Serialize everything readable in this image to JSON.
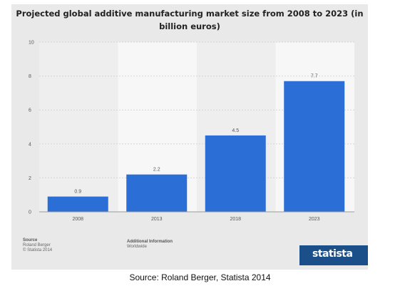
{
  "chart_data": {
    "type": "bar",
    "title": "Projected global additive manufacturing market size from 2008 to 2023 (in billion euros)",
    "categories": [
      "2008",
      "2013",
      "2018",
      "2023"
    ],
    "values": [
      0.9,
      2.2,
      4.5,
      7.7
    ],
    "data_labels": [
      "0.9",
      "2.2",
      "4.5",
      "7.7"
    ],
    "ylim": [
      0,
      10
    ],
    "yticks": [
      "0",
      "2",
      "4",
      "6",
      "8",
      "10"
    ],
    "xlabel": "",
    "ylabel": "",
    "grid": true,
    "bar_color": "#2b6fd6"
  },
  "footer": {
    "source_heading": "Source",
    "source_line1": "Roland Berger",
    "source_line2": "© Statista 2014",
    "info_heading": "Additional Information",
    "info_line1": "Worldwide",
    "logo": "statista"
  },
  "caption": "Source: Roland Berger, Statista 2014"
}
